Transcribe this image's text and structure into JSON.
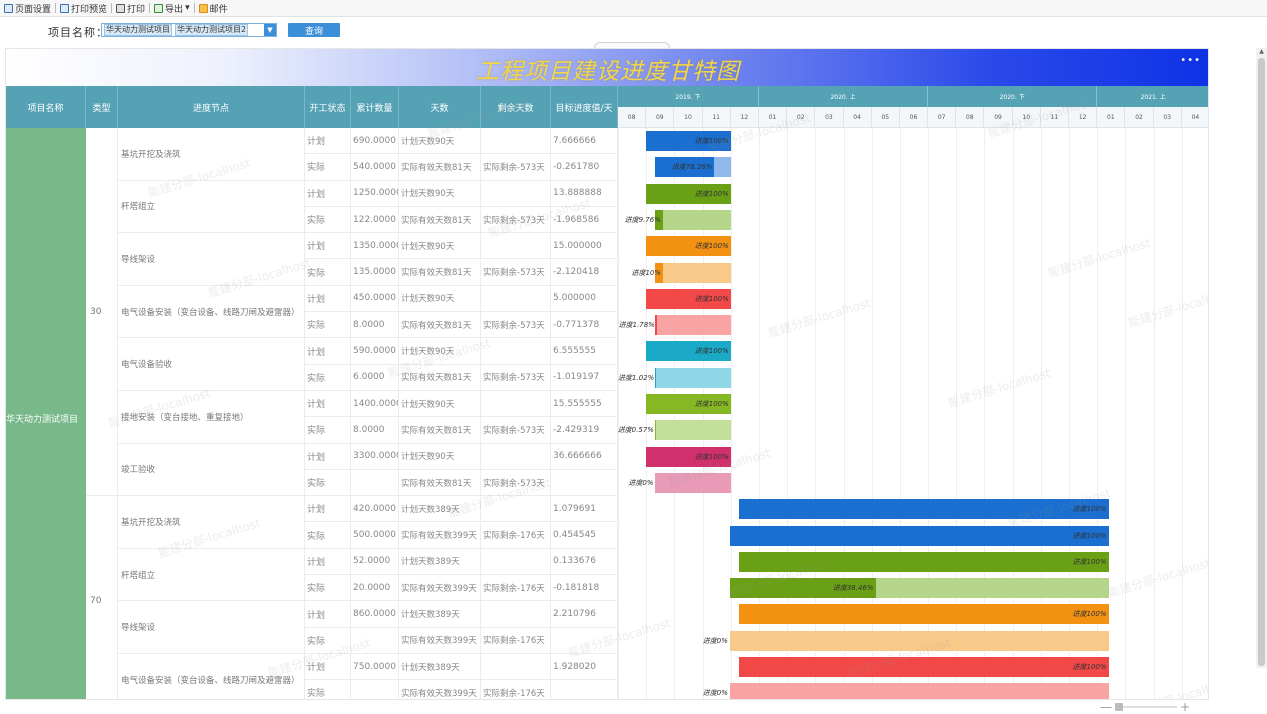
{
  "toolbar": {
    "items": [
      {
        "label": "页面设置",
        "icon": "page-setup-icon"
      },
      {
        "label": "打印预览",
        "icon": "print-preview-icon"
      },
      {
        "label": "打印",
        "icon": "print-icon"
      },
      {
        "label": "导出",
        "icon": "export-icon",
        "dropdown": true
      },
      {
        "label": "邮件",
        "icon": "mail-icon"
      }
    ]
  },
  "query": {
    "label": "项目名称：",
    "selected": [
      "华天动力测试项目",
      "华天动力测试项目2"
    ],
    "button": "查询"
  },
  "report": {
    "title": "工程项目建设进度甘特图",
    "menu_icon": "•••",
    "headers": [
      "项目名称",
      "类型",
      "进度节点",
      "开工状态",
      "累计数量",
      "天数",
      "剩余天数",
      "目标进度值/天"
    ],
    "timeline": {
      "periods": [
        "2019. 下",
        "2020. 上",
        "2020. 下",
        "2021. 上"
      ],
      "months": [
        "08",
        "09",
        "10",
        "11",
        "12",
        "01",
        "02",
        "03",
        "04",
        "05",
        "06",
        "07",
        "08",
        "09",
        "10",
        "11",
        "12",
        "01",
        "02",
        "03",
        "04"
      ]
    },
    "project": "华天动力测试项目",
    "groups": [
      {
        "type": "30",
        "nodes": [
          "基坑开挖及浇筑",
          "杆塔组立",
          "导线架设",
          "电气设备安装（变台设备、线路刀闸及避雷器）",
          "电气设备验收",
          "接地安装（变台接地、重复接地）",
          "竣工验收"
        ]
      },
      {
        "type": "70",
        "nodes": [
          "基坑开挖及浇筑",
          "杆塔组立",
          "导线架设",
          "电气设备安装（变台设备、线路刀闸及避雷器）"
        ]
      }
    ],
    "rows": [
      {
        "status": "计划",
        "qty": "690.0000",
        "days": "计划天数90天",
        "remain": "",
        "target": "7.666666",
        "progress": 1.0,
        "label": "进度100%",
        "start": 1.0,
        "end": 4.0,
        "color": "#1a6fd0",
        "light": "#8fb9ec"
      },
      {
        "status": "实际",
        "qty": "540.0000",
        "days": "实际有效天数81天",
        "remain": "实际剩余-573天",
        "target": "-0.261780",
        "progress": 0.7826,
        "label": "进度78.26%",
        "start": 1.33,
        "end": 4.0,
        "color": "#1a6fd0",
        "light": "#8fb9ec"
      },
      {
        "status": "计划",
        "qty": "1250.0000",
        "days": "计划天数90天",
        "remain": "",
        "target": "13.888888",
        "progress": 1.0,
        "label": "进度100%",
        "start": 1.0,
        "end": 4.0,
        "color": "#6aa015",
        "light": "#b5d68a"
      },
      {
        "status": "实际",
        "qty": "122.0000",
        "days": "实际有效天数81天",
        "remain": "实际剩余-573天",
        "target": "-1.968586",
        "progress": 0.0976,
        "label": "进度9.76%",
        "start": 1.33,
        "end": 4.0,
        "color": "#6aa015",
        "light": "#b5d68a"
      },
      {
        "status": "计划",
        "qty": "1350.0000",
        "days": "计划天数90天",
        "remain": "",
        "target": "15.000000",
        "progress": 1.0,
        "label": "进度100%",
        "start": 1.0,
        "end": 4.0,
        "color": "#f39212",
        "light": "#f9c98a"
      },
      {
        "status": "实际",
        "qty": "135.0000",
        "days": "实际有效天数81天",
        "remain": "实际剩余-573天",
        "target": "-2.120418",
        "progress": 0.1,
        "label": "进度10%",
        "start": 1.33,
        "end": 4.0,
        "color": "#f39212",
        "light": "#f9c98a"
      },
      {
        "status": "计划",
        "qty": "450.0000",
        "days": "计划天数90天",
        "remain": "",
        "target": "5.000000",
        "progress": 1.0,
        "label": "进度100%",
        "start": 1.0,
        "end": 4.0,
        "color": "#f34848",
        "light": "#f9a3a3"
      },
      {
        "status": "实际",
        "qty": "8.0000",
        "days": "实际有效天数81天",
        "remain": "实际剩余-573天",
        "target": "-0.771378",
        "progress": 0.0178,
        "label": "进度1.78%",
        "start": 1.33,
        "end": 4.0,
        "color": "#f34848",
        "light": "#f9a3a3"
      },
      {
        "status": "计划",
        "qty": "590.0000",
        "days": "计划天数90天",
        "remain": "",
        "target": "6.555555",
        "progress": 1.0,
        "label": "进度100%",
        "start": 1.0,
        "end": 4.0,
        "color": "#1ba9c8",
        "light": "#8fd6e6"
      },
      {
        "status": "实际",
        "qty": "6.0000",
        "days": "实际有效天数81天",
        "remain": "实际剩余-573天",
        "target": "-1.019197",
        "progress": 0.0102,
        "label": "进度1.02%",
        "start": 1.33,
        "end": 4.0,
        "color": "#1ba9c8",
        "light": "#8fd6e6"
      },
      {
        "status": "计划",
        "qty": "1400.0000",
        "days": "计划天数90天",
        "remain": "",
        "target": "15.555555",
        "progress": 1.0,
        "label": "进度100%",
        "start": 1.0,
        "end": 4.0,
        "color": "#86b824",
        "light": "#c2e09a"
      },
      {
        "status": "实际",
        "qty": "8.0000",
        "days": "实际有效天数81天",
        "remain": "实际剩余-573天",
        "target": "-2.429319",
        "progress": 0.0057,
        "label": "进度0.57%",
        "start": 1.33,
        "end": 4.0,
        "color": "#86b824",
        "light": "#c2e09a"
      },
      {
        "status": "计划",
        "qty": "3300.0000",
        "days": "计划天数90天",
        "remain": "",
        "target": "36.666666",
        "progress": 1.0,
        "label": "进度100%",
        "start": 1.0,
        "end": 4.0,
        "color": "#d0306c",
        "light": "#e89ab7"
      },
      {
        "status": "实际",
        "qty": "",
        "days": "实际有效天数81天",
        "remain": "实际剩余-573天",
        "target": "",
        "progress": 0.0,
        "label": "进度0%",
        "start": 1.33,
        "end": 4.0,
        "color": "#d0306c",
        "light": "#e89ab7"
      },
      {
        "status": "计划",
        "qty": "420.0000",
        "days": "计划天数389天",
        "remain": "",
        "target": "1.079691",
        "progress": 1.0,
        "label": "进度100%",
        "start": 4.3,
        "end": 17.4,
        "color": "#1a6fd0",
        "light": "#8fb9ec"
      },
      {
        "status": "实际",
        "qty": "500.0000",
        "days": "实际有效天数399天",
        "remain": "实际剩余-176天",
        "target": "0.454545",
        "progress": 1.0,
        "label": "进度100%",
        "start": 3.97,
        "end": 17.4,
        "color": "#1a6fd0",
        "light": "#8fb9ec"
      },
      {
        "status": "计划",
        "qty": "52.0000",
        "days": "计划天数389天",
        "remain": "",
        "target": "0.133676",
        "progress": 1.0,
        "label": "进度100%",
        "start": 4.3,
        "end": 17.4,
        "color": "#6aa015",
        "light": "#b5d68a"
      },
      {
        "status": "实际",
        "qty": "20.0000",
        "days": "实际有效天数399天",
        "remain": "实际剩余-176天",
        "target": "-0.181818",
        "progress": 0.3846,
        "label": "进度38.46%",
        "start": 3.97,
        "end": 17.4,
        "color": "#6aa015",
        "light": "#b5d68a"
      },
      {
        "status": "计划",
        "qty": "860.0000",
        "days": "计划天数389天",
        "remain": "",
        "target": "2.210796",
        "progress": 1.0,
        "label": "进度100%",
        "start": 4.3,
        "end": 17.4,
        "color": "#f39212",
        "light": "#f9c98a"
      },
      {
        "status": "实际",
        "qty": "",
        "days": "实际有效天数399天",
        "remain": "实际剩余-176天",
        "target": "",
        "progress": 0.0,
        "label": "进度0%",
        "start": 3.97,
        "end": 17.4,
        "color": "#f39212",
        "light": "#f9c98a"
      },
      {
        "status": "计划",
        "qty": "750.0000",
        "days": "计划天数389天",
        "remain": "",
        "target": "1.928020",
        "progress": 1.0,
        "label": "进度100%",
        "start": 4.3,
        "end": 17.4,
        "color": "#f34848",
        "light": "#f9a3a3"
      },
      {
        "status": "实际",
        "qty": "",
        "days": "实际有效天数399天",
        "remain": "实际剩余-176天",
        "target": "",
        "progress": 0.0,
        "label": "进度0%",
        "start": 3.97,
        "end": 17.4,
        "color": "#f34848",
        "light": "#f9a3a3"
      }
    ],
    "watermark": "能建分部-localhost"
  },
  "zoom": {
    "minus": "—",
    "plus": "+",
    "level": 0.0
  }
}
